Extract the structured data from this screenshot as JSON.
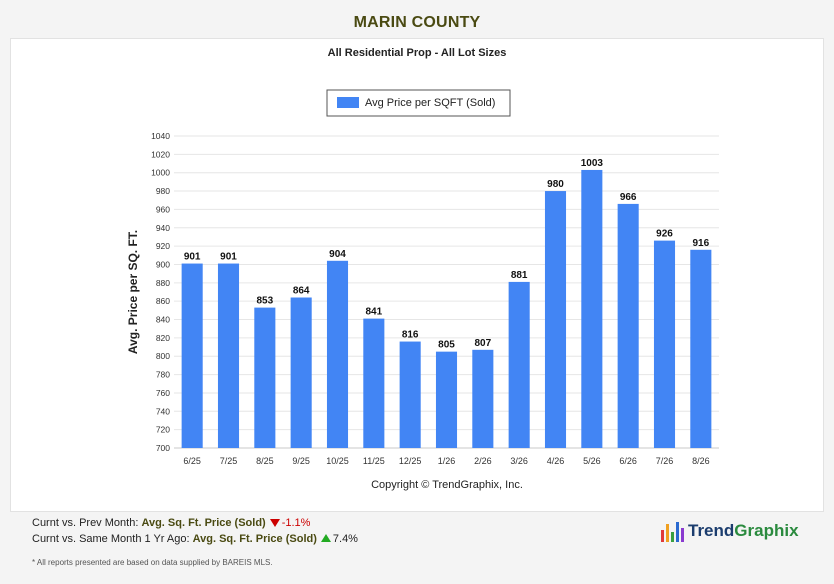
{
  "header": {
    "title": "MARIN COUNTY"
  },
  "chart_data": {
    "type": "bar",
    "title": "All Residential Prop - All Lot Sizes",
    "ylabel": "Avg. Price per SQ. FT.",
    "xlabel": "",
    "ylim": [
      700,
      1040
    ],
    "ytick_step": 20,
    "grid": true,
    "legend": "top-center",
    "categories": [
      "6/25",
      "7/25",
      "8/25",
      "9/25",
      "10/25",
      "11/25",
      "12/25",
      "1/26",
      "2/26",
      "3/26",
      "4/26",
      "5/26",
      "6/26",
      "7/26",
      "8/26"
    ],
    "series": [
      {
        "name": "Avg Price per SQFT (Sold)",
        "values": [
          901,
          901,
          853,
          864,
          904,
          841,
          816,
          805,
          807,
          881,
          980,
          1003,
          966,
          926,
          916
        ]
      }
    ],
    "copyright": "Copyright © TrendGraphix, Inc."
  },
  "colors": {
    "bar": "#4285f4",
    "title": "#4a4a12"
  },
  "footer": {
    "line1_prefix": "Curnt vs. Prev Month:",
    "line1_metric": "Avg. Sq. Ft. Price (Sold)",
    "line1_change": "-1.1%",
    "line2_prefix": "Curnt vs. Same Month 1 Yr Ago:",
    "line2_metric": "Avg. Sq. Ft. Price (Sold)",
    "line2_change": "7.4%",
    "disclaimer": "* All reports presented are based on data supplied by BAREIS MLS."
  },
  "logo": {
    "part1": "Trend",
    "part2": "Graphix",
    "icon": "bar-chart-icon"
  }
}
